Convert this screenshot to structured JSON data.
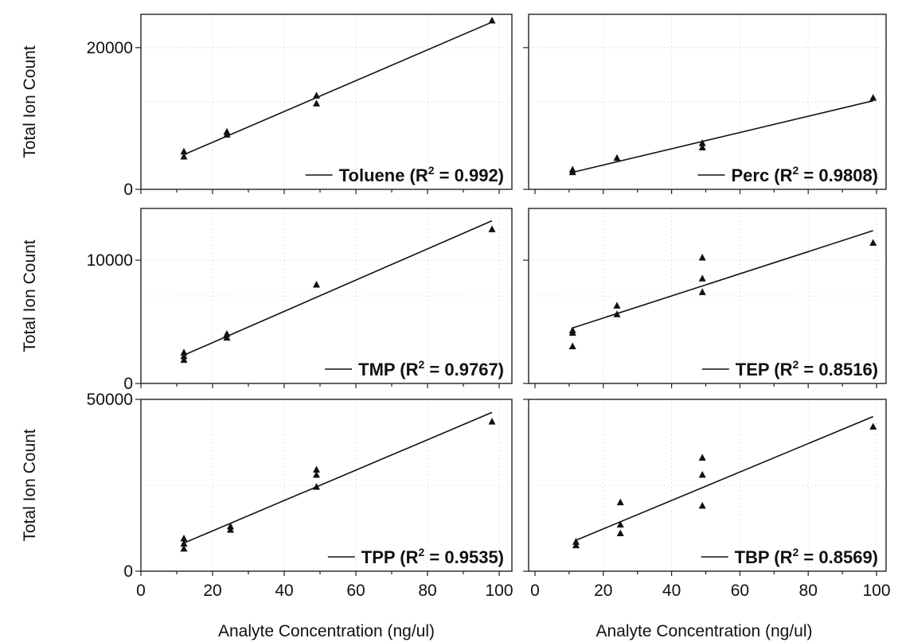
{
  "figure": {
    "y_axis_title": "Total Ion Count",
    "x_axis_title": "Analyte Concentration (ng/ul)"
  },
  "chart_data": [
    {
      "type": "scatter",
      "panel": "top-left",
      "title": "",
      "series": [
        {
          "name": "Toluene",
          "points": [
            [
              12,
              4600
            ],
            [
              12,
              5300
            ],
            [
              24,
              7700
            ],
            [
              24,
              8100
            ],
            [
              49,
              12100
            ],
            [
              49,
              13200
            ],
            [
              98,
              23800
            ]
          ]
        }
      ],
      "fit": {
        "x": [
          12,
          98
        ],
        "y": [
          4900,
          23600
        ]
      },
      "legend": {
        "line_label": "Toluene (R",
        "sup": "2",
        "suffix": " = 0.992)",
        "placement": "bottom-right"
      },
      "ylim": [
        0,
        24700
      ],
      "xlim": [
        0,
        100
      ],
      "y_ticks": [
        0,
        20000
      ],
      "y_tick_labels": [
        "0",
        "20000"
      ],
      "x_ticks": [
        0,
        20,
        40,
        60,
        80,
        100
      ],
      "x_tick_labels": [],
      "ylabel": "Total Ion Count",
      "xlabel": "",
      "grid": true
    },
    {
      "type": "scatter",
      "panel": "top-right",
      "title": "",
      "series": [
        {
          "name": "Perc",
          "points": [
            [
              11,
              2400
            ],
            [
              11,
              2750
            ],
            [
              24,
              4400
            ],
            [
              49,
              5900
            ],
            [
              49,
              6500
            ],
            [
              99,
              12900
            ]
          ]
        }
      ],
      "fit": {
        "x": [
          11,
          99
        ],
        "y": [
          2400,
          12500
        ]
      },
      "legend": {
        "line_label": "Perc (R",
        "sup": "2",
        "suffix": " = 0.9808)",
        "placement": "bottom-right"
      },
      "ylim": [
        0,
        24700
      ],
      "xlim": [
        0,
        100
      ],
      "y_ticks": [
        0,
        20000
      ],
      "y_tick_labels": [],
      "x_ticks": [
        0,
        20,
        40,
        60,
        80,
        100
      ],
      "x_tick_labels": [],
      "ylabel": "",
      "xlabel": "",
      "grid": true
    },
    {
      "type": "scatter",
      "panel": "middle-left",
      "title": "",
      "series": [
        {
          "name": "TMP",
          "points": [
            [
              12,
              1900
            ],
            [
              12,
              2200
            ],
            [
              12,
              2500
            ],
            [
              24,
              3700
            ],
            [
              24,
              4000
            ],
            [
              49,
              8000
            ],
            [
              98,
              12500
            ]
          ]
        }
      ],
      "fit": {
        "x": [
          12,
          98
        ],
        "y": [
          2300,
          13200
        ]
      },
      "legend": {
        "line_label": "TMP (R",
        "sup": "2",
        "suffix": " = 0.9767)",
        "placement": "bottom-right"
      },
      "ylim": [
        0,
        14200
      ],
      "xlim": [
        0,
        100
      ],
      "y_ticks": [
        0,
        10000
      ],
      "y_tick_labels": [
        "0",
        "10000"
      ],
      "x_ticks": [
        0,
        20,
        40,
        60,
        80,
        100
      ],
      "x_tick_labels": [],
      "ylabel": "Total Ion Count",
      "xlabel": "",
      "grid": true
    },
    {
      "type": "scatter",
      "panel": "middle-right",
      "title": "",
      "series": [
        {
          "name": "TEP",
          "points": [
            [
              11,
              3000
            ],
            [
              11,
              4100
            ],
            [
              11,
              4300
            ],
            [
              24,
              5600
            ],
            [
              24,
              6300
            ],
            [
              49,
              7400
            ],
            [
              49,
              8500
            ],
            [
              49,
              10200
            ],
            [
              99,
              11400
            ]
          ]
        }
      ],
      "fit": {
        "x": [
          11,
          99
        ],
        "y": [
          4500,
          12400
        ]
      },
      "legend": {
        "line_label": "TEP (R",
        "sup": "2",
        "suffix": " = 0.8516)",
        "placement": "bottom-right"
      },
      "ylim": [
        0,
        14200
      ],
      "xlim": [
        0,
        100
      ],
      "y_ticks": [
        0,
        10000
      ],
      "y_tick_labels": [],
      "x_ticks": [
        0,
        20,
        40,
        60,
        80,
        100
      ],
      "x_tick_labels": [],
      "ylabel": "",
      "xlabel": "",
      "grid": true
    },
    {
      "type": "scatter",
      "panel": "bottom-left",
      "title": "",
      "series": [
        {
          "name": "TPP",
          "points": [
            [
              12,
              6500
            ],
            [
              12,
              8000
            ],
            [
              12,
              9500
            ],
            [
              25,
              12000
            ],
            [
              25,
              13000
            ],
            [
              49,
              24500
            ],
            [
              49,
              28000
            ],
            [
              49,
              29500
            ],
            [
              98,
              43500
            ]
          ]
        }
      ],
      "fit": {
        "x": [
          12,
          98
        ],
        "y": [
          8200,
          46200
        ]
      },
      "legend": {
        "line_label": "TPP (R",
        "sup": "2",
        "suffix": " = 0.9535)",
        "placement": "bottom-right"
      },
      "ylim": [
        0,
        50000
      ],
      "xlim": [
        0,
        100
      ],
      "y_ticks": [
        0,
        50000
      ],
      "y_tick_labels": [
        "0",
        "50000"
      ],
      "x_ticks": [
        0,
        20,
        40,
        60,
        80,
        100
      ],
      "x_tick_labels": [
        "0",
        "20",
        "40",
        "60",
        "80",
        "100"
      ],
      "ylabel": "Total Ion Count",
      "xlabel": "Analyte Concentration (ng/ul)",
      "grid": true
    },
    {
      "type": "scatter",
      "panel": "bottom-right",
      "title": "",
      "series": [
        {
          "name": "TBP",
          "points": [
            [
              12,
              7500
            ],
            [
              12,
              8500
            ],
            [
              25,
              11000
            ],
            [
              25,
              13500
            ],
            [
              25,
              20000
            ],
            [
              49,
              19000
            ],
            [
              49,
              28000
            ],
            [
              49,
              33000
            ],
            [
              99,
              42000
            ]
          ]
        }
      ],
      "fit": {
        "x": [
          12,
          99
        ],
        "y": [
          9000,
          45000
        ]
      },
      "legend": {
        "line_label": "TBP (R",
        "sup": "2",
        "suffix": " = 0.8569)",
        "placement": "bottom-right"
      },
      "ylim": [
        0,
        50000
      ],
      "xlim": [
        0,
        100
      ],
      "y_ticks": [
        0,
        50000
      ],
      "y_tick_labels": [],
      "x_ticks": [
        0,
        20,
        40,
        60,
        80,
        100
      ],
      "x_tick_labels": [
        "0",
        "20",
        "40",
        "60",
        "80",
        "100"
      ],
      "ylabel": "",
      "xlabel": "Analyte Concentration (ng/ul)",
      "grid": true
    }
  ]
}
